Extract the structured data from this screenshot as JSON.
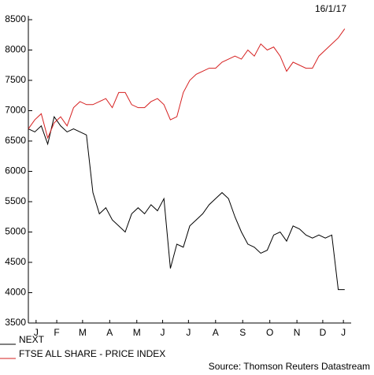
{
  "chart_data": {
    "type": "line",
    "date_label": "16/1/17",
    "source": "Source: Thomson Reuters Datastream",
    "xlim": [
      0,
      12.5
    ],
    "xticks": [
      {
        "value": 0.3,
        "label": "J"
      },
      {
        "value": 1.1,
        "label": "F"
      },
      {
        "value": 2.1,
        "label": "M"
      },
      {
        "value": 3.15,
        "label": "A"
      },
      {
        "value": 4.2,
        "label": "M"
      },
      {
        "value": 5.2,
        "label": "J"
      },
      {
        "value": 6.2,
        "label": "J"
      },
      {
        "value": 7.25,
        "label": "A"
      },
      {
        "value": 8.3,
        "label": "S"
      },
      {
        "value": 9.35,
        "label": "O"
      },
      {
        "value": 10.4,
        "label": "N"
      },
      {
        "value": 11.4,
        "label": "D"
      },
      {
        "value": 12.2,
        "label": "J"
      }
    ],
    "ylim": [
      3500,
      8500
    ],
    "yticks": [
      3500,
      4000,
      4500,
      5000,
      5500,
      6000,
      6500,
      7000,
      7500,
      8000,
      8500
    ],
    "grid": false,
    "x": [
      0,
      0.25,
      0.5,
      0.75,
      1,
      1.25,
      1.5,
      1.75,
      2,
      2.25,
      2.5,
      2.75,
      3,
      3.25,
      3.5,
      3.75,
      4,
      4.25,
      4.5,
      4.75,
      5,
      5.25,
      5.5,
      5.75,
      6,
      6.25,
      6.5,
      6.75,
      7,
      7.25,
      7.5,
      7.75,
      8,
      8.25,
      8.5,
      8.75,
      9,
      9.25,
      9.5,
      9.75,
      10,
      10.25,
      10.5,
      10.75,
      11,
      11.25,
      11.5,
      11.75,
      12,
      12.25
    ],
    "series": [
      {
        "name": "NEXT",
        "color": "#000000",
        "values": [
          6700,
          6650,
          6750,
          6450,
          6900,
          6750,
          6650,
          6700,
          6650,
          6600,
          5650,
          5300,
          5400,
          5200,
          5100,
          5000,
          5300,
          5400,
          5300,
          5450,
          5350,
          5550,
          4400,
          4800,
          4750,
          5100,
          5200,
          5300,
          5450,
          5550,
          5650,
          5550,
          5250,
          5000,
          4800,
          4750,
          4650,
          4700,
          4950,
          5000,
          4850,
          5100,
          5050,
          4950,
          4900,
          4950,
          4900,
          4950,
          4050,
          4050
        ]
      },
      {
        "name": "FTSE ALL SHARE - PRICE INDEX",
        "color": "#d62020",
        "values": [
          6700,
          6850,
          6950,
          6550,
          6800,
          6900,
          6750,
          7050,
          7150,
          7100,
          7100,
          7150,
          7200,
          7050,
          7300,
          7300,
          7100,
          7050,
          7050,
          7150,
          7200,
          7100,
          6850,
          6900,
          7300,
          7500,
          7600,
          7650,
          7700,
          7700,
          7800,
          7850,
          7900,
          7850,
          8000,
          7900,
          8100,
          8000,
          8050,
          7900,
          7650,
          7800,
          7750,
          7700,
          7700,
          7900,
          8000,
          8100,
          8200,
          8350
        ]
      }
    ]
  }
}
